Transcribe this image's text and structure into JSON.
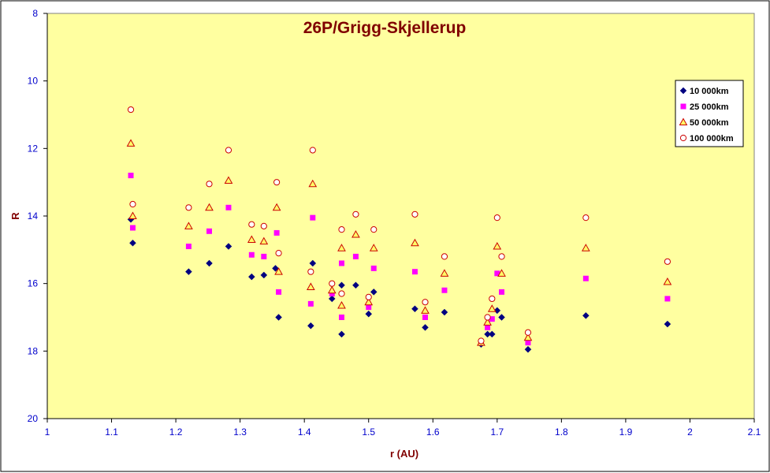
{
  "chart_data": {
    "type": "scatter",
    "title": "26P/Grigg-Skjellerup",
    "xlabel": "r (AU)",
    "ylabel": "R",
    "xlim": [
      1,
      2.1
    ],
    "ylim": [
      8,
      20
    ],
    "y_inverted": true,
    "x_ticks": [
      "1",
      "1.1",
      "1.2",
      "1.3",
      "1.4",
      "1.5",
      "1.6",
      "1.7",
      "1.8",
      "1.9",
      "2",
      "2.1"
    ],
    "y_ticks": [
      "8",
      "10",
      "12",
      "14",
      "16",
      "18",
      "20"
    ],
    "grid": false,
    "legend_position": "top-right",
    "colors": {
      "plot_background": "#FFFFA0",
      "outer_background": "#FFFFFF",
      "title": "#800000",
      "axis_label": "#800000",
      "tick_label": "#0000CC",
      "axis_line": "#000000"
    },
    "series": [
      {
        "name": "10 000km",
        "marker": "diamond",
        "color": "#000080",
        "points": [
          [
            1.13,
            14.1
          ],
          [
            1.133,
            14.8
          ],
          [
            1.22,
            15.65
          ],
          [
            1.252,
            15.4
          ],
          [
            1.282,
            14.9
          ],
          [
            1.318,
            15.8
          ],
          [
            1.337,
            15.75
          ],
          [
            1.355,
            15.55
          ],
          [
            1.36,
            17.0
          ],
          [
            1.41,
            17.25
          ],
          [
            1.413,
            15.4
          ],
          [
            1.443,
            16.45
          ],
          [
            1.458,
            16.05
          ],
          [
            1.458,
            17.5
          ],
          [
            1.48,
            16.05
          ],
          [
            1.5,
            16.9
          ],
          [
            1.508,
            16.25
          ],
          [
            1.572,
            16.75
          ],
          [
            1.588,
            17.3
          ],
          [
            1.618,
            16.85
          ],
          [
            1.675,
            17.8
          ],
          [
            1.685,
            17.5
          ],
          [
            1.692,
            17.5
          ],
          [
            1.7,
            16.8
          ],
          [
            1.707,
            17.0
          ],
          [
            1.748,
            17.95
          ],
          [
            1.838,
            16.95
          ],
          [
            1.965,
            17.2
          ]
        ]
      },
      {
        "name": "25 000km",
        "marker": "square",
        "color": "#FF00FF",
        "points": [
          [
            1.13,
            12.8
          ],
          [
            1.133,
            14.35
          ],
          [
            1.22,
            14.9
          ],
          [
            1.252,
            14.45
          ],
          [
            1.282,
            13.75
          ],
          [
            1.318,
            15.15
          ],
          [
            1.337,
            15.2
          ],
          [
            1.357,
            14.5
          ],
          [
            1.36,
            16.25
          ],
          [
            1.41,
            16.6
          ],
          [
            1.413,
            14.05
          ],
          [
            1.443,
            16.3
          ],
          [
            1.458,
            15.4
          ],
          [
            1.458,
            17.0
          ],
          [
            1.48,
            15.2
          ],
          [
            1.5,
            16.7
          ],
          [
            1.508,
            15.55
          ],
          [
            1.572,
            15.65
          ],
          [
            1.588,
            17.0
          ],
          [
            1.618,
            16.2
          ],
          [
            1.675,
            17.75
          ],
          [
            1.685,
            17.3
          ],
          [
            1.692,
            17.05
          ],
          [
            1.7,
            15.7
          ],
          [
            1.707,
            16.25
          ],
          [
            1.748,
            17.75
          ],
          [
            1.838,
            15.85
          ],
          [
            1.965,
            16.45
          ]
        ]
      },
      {
        "name": "50 000km",
        "marker": "triangle",
        "color": "#CC0000",
        "points": [
          [
            1.13,
            11.85
          ],
          [
            1.133,
            14.0
          ],
          [
            1.22,
            14.3
          ],
          [
            1.252,
            13.75
          ],
          [
            1.282,
            12.95
          ],
          [
            1.318,
            14.7
          ],
          [
            1.337,
            14.75
          ],
          [
            1.357,
            13.75
          ],
          [
            1.36,
            15.65
          ],
          [
            1.41,
            16.1
          ],
          [
            1.413,
            13.05
          ],
          [
            1.443,
            16.2
          ],
          [
            1.458,
            14.95
          ],
          [
            1.458,
            16.65
          ],
          [
            1.48,
            14.55
          ],
          [
            1.5,
            16.55
          ],
          [
            1.508,
            14.95
          ],
          [
            1.572,
            14.8
          ],
          [
            1.588,
            16.8
          ],
          [
            1.618,
            15.7
          ],
          [
            1.675,
            17.75
          ],
          [
            1.685,
            17.15
          ],
          [
            1.692,
            16.75
          ],
          [
            1.7,
            14.9
          ],
          [
            1.707,
            15.7
          ],
          [
            1.748,
            17.6
          ],
          [
            1.838,
            14.95
          ],
          [
            1.965,
            15.95
          ]
        ]
      },
      {
        "name": "100 000km",
        "marker": "circle",
        "color": "#CC0000",
        "points": [
          [
            1.13,
            10.85
          ],
          [
            1.133,
            13.65
          ],
          [
            1.22,
            13.75
          ],
          [
            1.252,
            13.05
          ],
          [
            1.282,
            12.05
          ],
          [
            1.318,
            14.25
          ],
          [
            1.337,
            14.3
          ],
          [
            1.357,
            13.0
          ],
          [
            1.36,
            15.1
          ],
          [
            1.41,
            15.65
          ],
          [
            1.413,
            12.05
          ],
          [
            1.443,
            16.0
          ],
          [
            1.458,
            14.4
          ],
          [
            1.458,
            16.3
          ],
          [
            1.48,
            13.95
          ],
          [
            1.5,
            16.4
          ],
          [
            1.508,
            14.4
          ],
          [
            1.572,
            13.95
          ],
          [
            1.588,
            16.55
          ],
          [
            1.618,
            15.2
          ],
          [
            1.675,
            17.7
          ],
          [
            1.685,
            17.0
          ],
          [
            1.692,
            16.45
          ],
          [
            1.7,
            14.05
          ],
          [
            1.707,
            15.2
          ],
          [
            1.748,
            17.45
          ],
          [
            1.838,
            14.05
          ],
          [
            1.965,
            15.35
          ]
        ]
      }
    ]
  }
}
